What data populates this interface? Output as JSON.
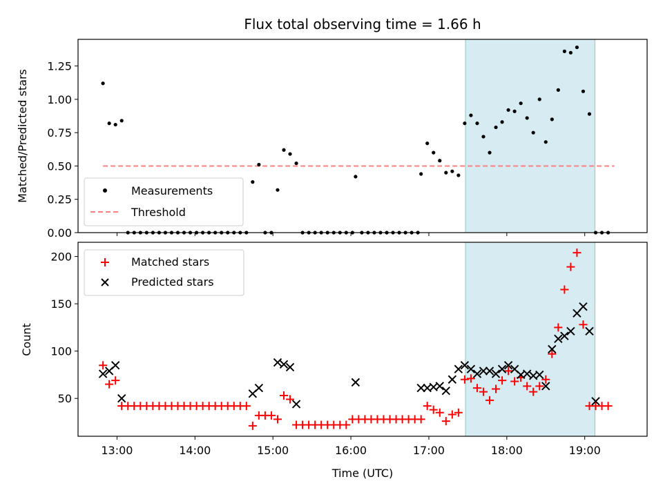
{
  "chart_data": [
    {
      "type": "scatter",
      "title": "Flux total observing time = 1.66 h",
      "xlabel": "",
      "ylabel": "Matched/Predicted stars",
      "xlim": [
        12.5,
        19.8
      ],
      "ylim": [
        0,
        1.45
      ],
      "yticks": [
        "0.00",
        "0.25",
        "0.50",
        "0.75",
        "1.00",
        "1.25"
      ],
      "shaded_region": {
        "x_start": 17.47,
        "x_end": 19.13,
        "color": "#add8e6"
      },
      "legend_position": "lower-left",
      "series": [
        {
          "name": "Measurements",
          "marker": "dot",
          "color": "#000000",
          "points": [
            [
              12.82,
              1.12
            ],
            [
              12.9,
              0.82
            ],
            [
              12.98,
              0.81
            ],
            [
              13.06,
              0.84
            ],
            [
              13.14,
              0
            ],
            [
              13.22,
              0
            ],
            [
              13.3,
              0
            ],
            [
              13.38,
              0
            ],
            [
              13.46,
              0
            ],
            [
              13.54,
              0
            ],
            [
              13.62,
              0
            ],
            [
              13.7,
              0
            ],
            [
              13.78,
              0
            ],
            [
              13.86,
              0
            ],
            [
              13.94,
              0
            ],
            [
              14.02,
              0
            ],
            [
              14.1,
              0
            ],
            [
              14.18,
              0
            ],
            [
              14.26,
              0
            ],
            [
              14.34,
              0
            ],
            [
              14.42,
              0
            ],
            [
              14.5,
              0
            ],
            [
              14.58,
              0
            ],
            [
              14.66,
              0
            ],
            [
              14.74,
              0.38
            ],
            [
              14.82,
              0.51
            ],
            [
              14.9,
              0
            ],
            [
              14.98,
              0
            ],
            [
              15.06,
              0.32
            ],
            [
              15.14,
              0.62
            ],
            [
              15.22,
              0.59
            ],
            [
              15.3,
              0.52
            ],
            [
              15.38,
              0
            ],
            [
              15.46,
              0
            ],
            [
              15.54,
              0
            ],
            [
              15.62,
              0
            ],
            [
              15.7,
              0
            ],
            [
              15.78,
              0
            ],
            [
              15.86,
              0
            ],
            [
              15.94,
              0
            ],
            [
              16.02,
              0
            ],
            [
              16.06,
              0.42
            ],
            [
              16.14,
              0
            ],
            [
              16.22,
              0
            ],
            [
              16.3,
              0
            ],
            [
              16.38,
              0
            ],
            [
              16.46,
              0
            ],
            [
              16.54,
              0
            ],
            [
              16.62,
              0
            ],
            [
              16.7,
              0
            ],
            [
              16.78,
              0
            ],
            [
              16.86,
              0
            ],
            [
              16.9,
              0.44
            ],
            [
              16.98,
              0.67
            ],
            [
              17.06,
              0.6
            ],
            [
              17.14,
              0.54
            ],
            [
              17.22,
              0.45
            ],
            [
              17.3,
              0.46
            ],
            [
              17.38,
              0.43
            ],
            [
              17.46,
              0.82
            ],
            [
              17.54,
              0.88
            ],
            [
              17.62,
              0.82
            ],
            [
              17.7,
              0.72
            ],
            [
              17.78,
              0.6
            ],
            [
              17.86,
              0.79
            ],
            [
              17.94,
              0.83
            ],
            [
              18.02,
              0.92
            ],
            [
              18.1,
              0.91
            ],
            [
              18.18,
              0.97
            ],
            [
              18.26,
              0.86
            ],
            [
              18.34,
              0.75
            ],
            [
              18.42,
              1.0
            ],
            [
              18.5,
              0.68
            ],
            [
              18.58,
              0.85
            ],
            [
              18.66,
              1.07
            ],
            [
              18.74,
              1.36
            ],
            [
              18.82,
              1.35
            ],
            [
              18.9,
              1.39
            ],
            [
              18.98,
              1.06
            ],
            [
              19.06,
              0.89
            ],
            [
              19.14,
              0
            ],
            [
              19.22,
              0
            ],
            [
              19.3,
              0
            ]
          ]
        },
        {
          "name": "Threshold",
          "style": "dashed",
          "color": "#ff7f7f",
          "x": [
            12.82,
            19.38
          ],
          "y": [
            0.5,
            0.5
          ]
        }
      ]
    },
    {
      "type": "scatter",
      "title": "",
      "xlabel": "Time (UTC)",
      "ylabel": "Count",
      "xlim": [
        12.5,
        19.8
      ],
      "ylim": [
        10,
        215
      ],
      "yticks": [
        "50",
        "100",
        "150",
        "200"
      ],
      "xtick_values": [
        13,
        14,
        15,
        16,
        17,
        18,
        19
      ],
      "xtick_labels": [
        "13:00",
        "14:00",
        "15:00",
        "16:00",
        "17:00",
        "18:00",
        "19:00"
      ],
      "shaded_region": {
        "x_start": 17.47,
        "x_end": 19.13,
        "color": "#add8e6"
      },
      "legend_position": "upper-left",
      "series": [
        {
          "name": "Matched stars",
          "marker": "plus",
          "color": "#ff0000",
          "points": [
            [
              12.82,
              85
            ],
            [
              12.9,
              65
            ],
            [
              12.98,
              69
            ],
            [
              13.06,
              42
            ],
            [
              13.14,
              42
            ],
            [
              13.22,
              42
            ],
            [
              13.3,
              42
            ],
            [
              13.38,
              42
            ],
            [
              13.46,
              42
            ],
            [
              13.54,
              42
            ],
            [
              13.62,
              42
            ],
            [
              13.7,
              42
            ],
            [
              13.78,
              42
            ],
            [
              13.86,
              42
            ],
            [
              13.94,
              42
            ],
            [
              14.02,
              42
            ],
            [
              14.1,
              42
            ],
            [
              14.18,
              42
            ],
            [
              14.26,
              42
            ],
            [
              14.34,
              42
            ],
            [
              14.42,
              42
            ],
            [
              14.5,
              42
            ],
            [
              14.58,
              42
            ],
            [
              14.66,
              42
            ],
            [
              14.74,
              21
            ],
            [
              14.82,
              32
            ],
            [
              14.9,
              32
            ],
            [
              14.98,
              32
            ],
            [
              15.06,
              28
            ],
            [
              15.14,
              53
            ],
            [
              15.22,
              49
            ],
            [
              15.3,
              22
            ],
            [
              15.38,
              22
            ],
            [
              15.46,
              22
            ],
            [
              15.54,
              22
            ],
            [
              15.62,
              22
            ],
            [
              15.7,
              22
            ],
            [
              15.78,
              22
            ],
            [
              15.86,
              22
            ],
            [
              15.94,
              22
            ],
            [
              16.02,
              28
            ],
            [
              16.1,
              28
            ],
            [
              16.18,
              28
            ],
            [
              16.26,
              28
            ],
            [
              16.34,
              28
            ],
            [
              16.42,
              28
            ],
            [
              16.5,
              28
            ],
            [
              16.58,
              28
            ],
            [
              16.66,
              28
            ],
            [
              16.74,
              28
            ],
            [
              16.82,
              28
            ],
            [
              16.9,
              28
            ],
            [
              16.98,
              42
            ],
            [
              17.06,
              38
            ],
            [
              17.14,
              35
            ],
            [
              17.22,
              26
            ],
            [
              17.3,
              33
            ],
            [
              17.38,
              35
            ],
            [
              17.46,
              70
            ],
            [
              17.54,
              71
            ],
            [
              17.62,
              61
            ],
            [
              17.7,
              57
            ],
            [
              17.78,
              48
            ],
            [
              17.86,
              60
            ],
            [
              17.94,
              69
            ],
            [
              18.02,
              79
            ],
            [
              18.1,
              68
            ],
            [
              18.18,
              72
            ],
            [
              18.26,
              63
            ],
            [
              18.34,
              57
            ],
            [
              18.42,
              63
            ],
            [
              18.5,
              70
            ],
            [
              18.58,
              97
            ],
            [
              18.66,
              125
            ],
            [
              18.74,
              165
            ],
            [
              18.82,
              189
            ],
            [
              18.9,
              204
            ],
            [
              18.98,
              128
            ],
            [
              19.06,
              42
            ],
            [
              19.14,
              42
            ],
            [
              19.22,
              42
            ],
            [
              19.3,
              42
            ]
          ]
        },
        {
          "name": "Predicted stars",
          "marker": "x",
          "color": "#000000",
          "points": [
            [
              12.82,
              76
            ],
            [
              12.9,
              79
            ],
            [
              12.98,
              85
            ],
            [
              13.06,
              50
            ],
            [
              14.74,
              55
            ],
            [
              14.82,
              61
            ],
            [
              15.06,
              88
            ],
            [
              15.14,
              86
            ],
            [
              15.22,
              83
            ],
            [
              15.3,
              44
            ],
            [
              16.06,
              67
            ],
            [
              16.9,
              61
            ],
            [
              16.98,
              61
            ],
            [
              17.06,
              62
            ],
            [
              17.14,
              63
            ],
            [
              17.22,
              58
            ],
            [
              17.3,
              70
            ],
            [
              17.38,
              81
            ],
            [
              17.46,
              85
            ],
            [
              17.54,
              81
            ],
            [
              17.62,
              76
            ],
            [
              17.7,
              79
            ],
            [
              17.78,
              79
            ],
            [
              17.86,
              76
            ],
            [
              17.94,
              81
            ],
            [
              18.02,
              85
            ],
            [
              18.1,
              81
            ],
            [
              18.18,
              75
            ],
            [
              18.26,
              76
            ],
            [
              18.34,
              74
            ],
            [
              18.42,
              75
            ],
            [
              18.5,
              63
            ],
            [
              18.58,
              102
            ],
            [
              18.66,
              113
            ],
            [
              18.74,
              116
            ],
            [
              18.82,
              121
            ],
            [
              18.9,
              140
            ],
            [
              18.98,
              147
            ],
            [
              19.06,
              121
            ],
            [
              19.14,
              47
            ]
          ]
        }
      ]
    }
  ]
}
